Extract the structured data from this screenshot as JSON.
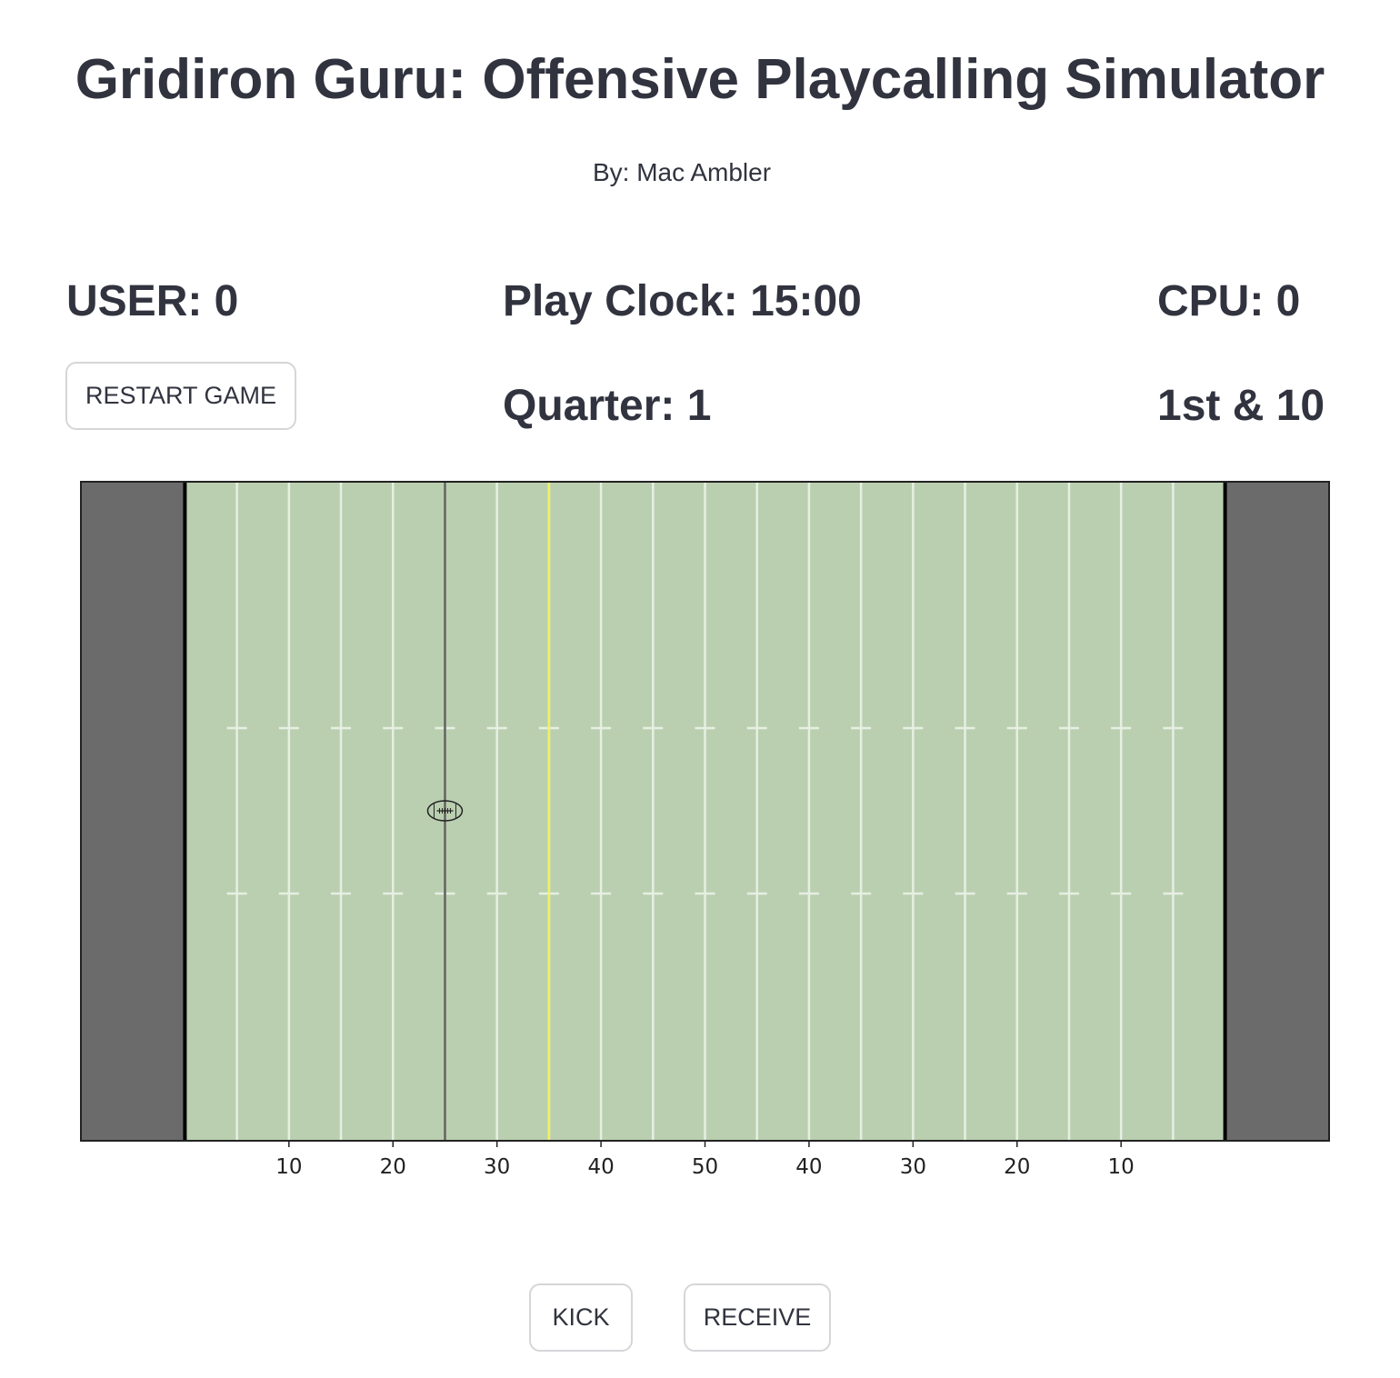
{
  "header": {
    "title": "Gridiron Guru: Offensive Playcalling Simulator",
    "byline": "By: Mac Ambler"
  },
  "scoreboard": {
    "user": "USER: 0",
    "play_clock": "Play Clock: 15:00",
    "cpu": "CPU: 0",
    "quarter": "Quarter: 1",
    "down": "1st & 10"
  },
  "buttons": {
    "restart": "RESTART GAME",
    "kick": "KICK",
    "receive": "RECEIVE"
  },
  "chart_data": {
    "type": "field",
    "xlim": [
      -10,
      110
    ],
    "xticks": [
      10,
      20,
      30,
      40,
      50,
      {
        "value": 60,
        "label": "40"
      },
      {
        "value": 70,
        "label": "30"
      },
      {
        "value": 80,
        "label": "20"
      },
      {
        "value": 90,
        "label": "10"
      }
    ],
    "line_of_scrimmage": 25,
    "first_down": 35,
    "ball": 25
  }
}
